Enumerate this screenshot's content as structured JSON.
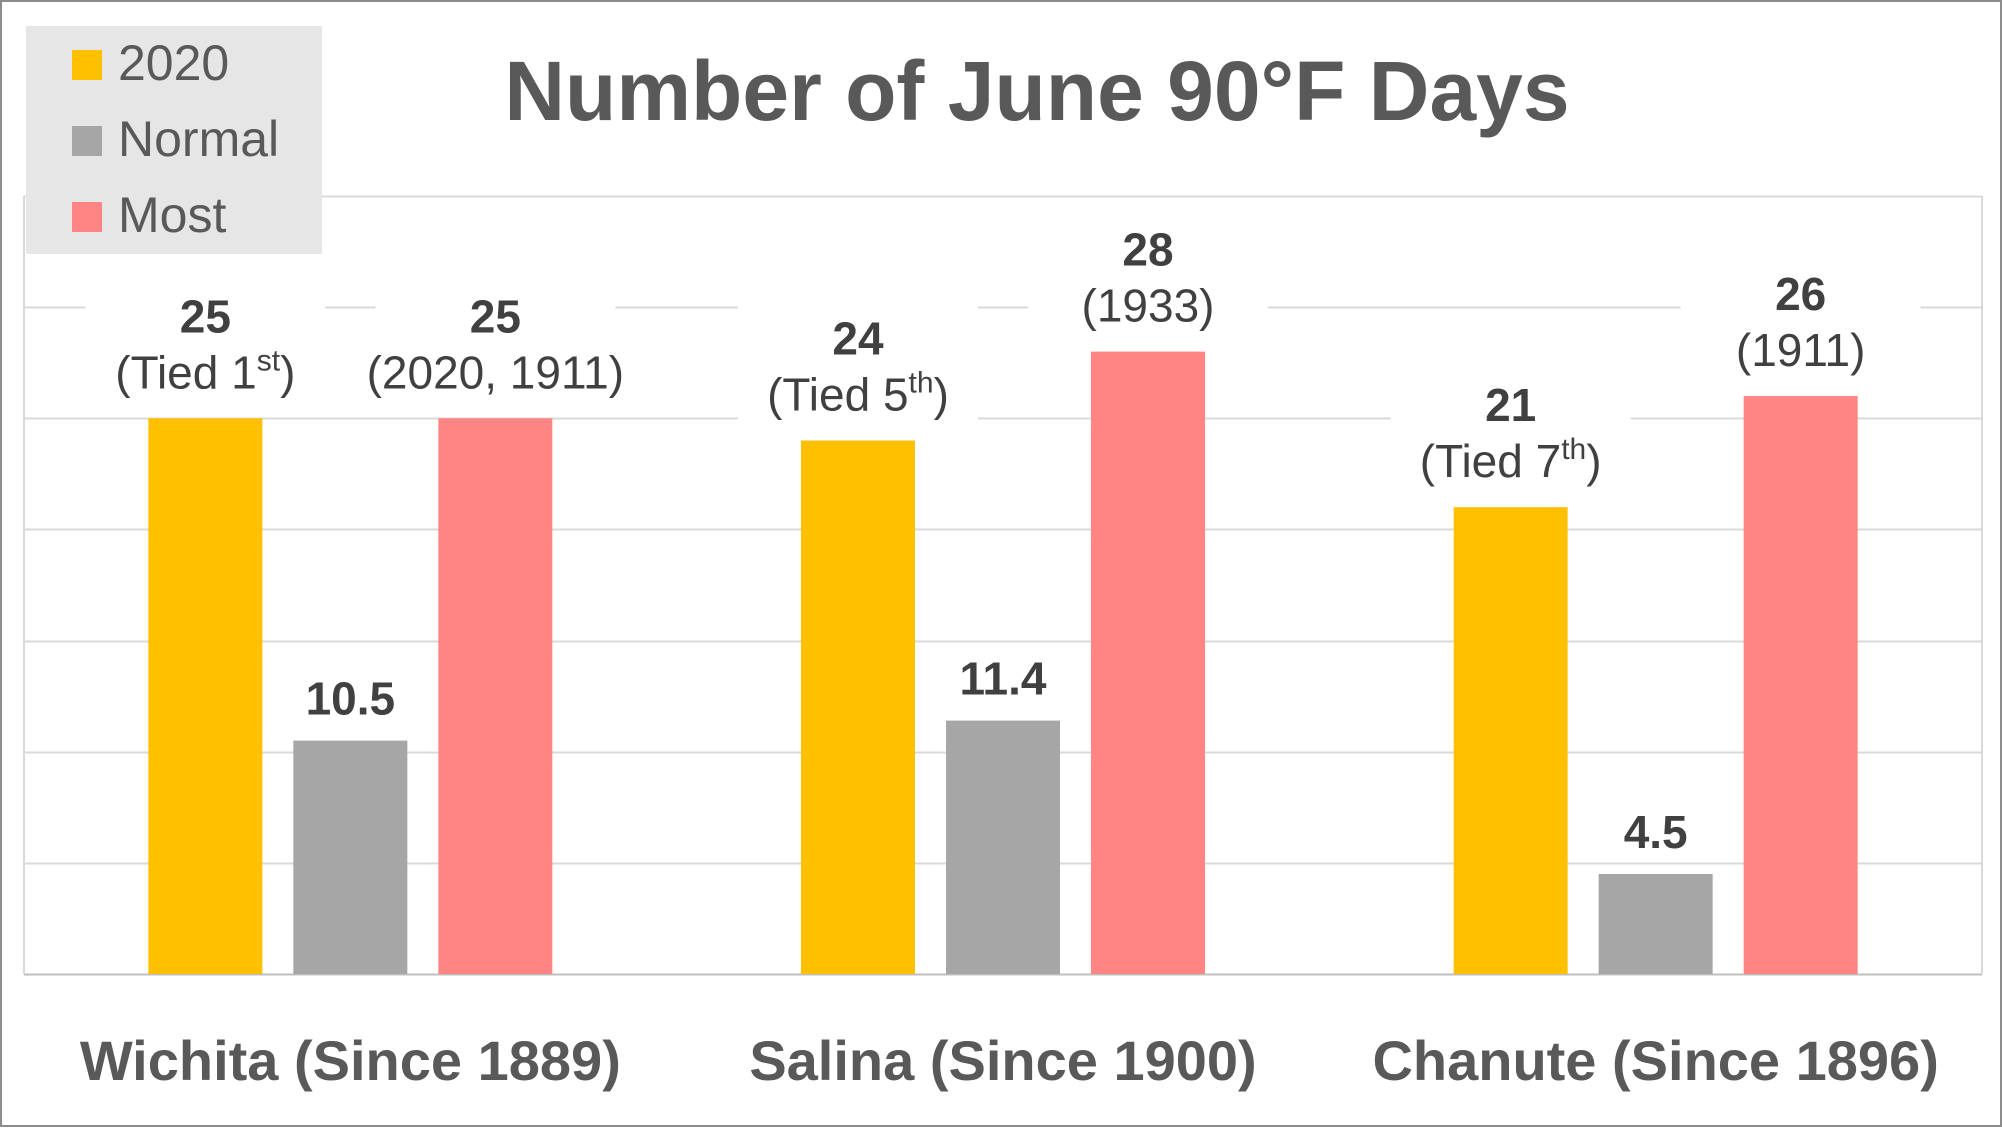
{
  "chart_data": {
    "type": "bar",
    "title": "Number of June 90°F Days",
    "categories": [
      "Wichita (Since 1889)",
      "Salina (Since 1900)",
      "Chanute (Since 1896)"
    ],
    "series": [
      {
        "name": "2020",
        "color": "#FFC000",
        "values": [
          25,
          24,
          21
        ]
      },
      {
        "name": "Normal",
        "color": "#A6A6A6",
        "values": [
          10.5,
          11.4,
          4.5
        ]
      },
      {
        "name": "Most",
        "color": "#FF8585",
        "values": [
          25,
          28,
          26
        ]
      }
    ],
    "annotations": [
      [
        {
          "pre": "(Tied 1",
          "sup": "st",
          "post": ")"
        },
        null,
        {
          "pre": "(2020, 1911)",
          "sup": "",
          "post": ""
        }
      ],
      [
        {
          "pre": "(Tied 5",
          "sup": "th",
          "post": ")"
        },
        null,
        {
          "pre": "(1933)",
          "sup": "",
          "post": ""
        }
      ],
      [
        {
          "pre": "(Tied 7",
          "sup": "th",
          "post": ")"
        },
        null,
        {
          "pre": "(1911)",
          "sup": "",
          "post": ""
        }
      ]
    ],
    "ylim": [
      0,
      35
    ],
    "grid": true,
    "legend_position": "top-left"
  }
}
